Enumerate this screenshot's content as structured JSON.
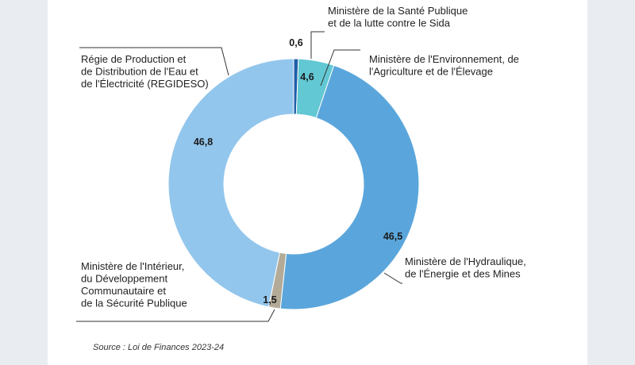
{
  "chart_data": {
    "type": "pie",
    "donut": true,
    "source": "Source : Loi de Finances  2023-24",
    "slices": [
      {
        "label_lines": [
          "Ministère de la Santé Publique",
          "et de la lutte contre le Sida"
        ],
        "value": 0.6,
        "value_label": "0,6",
        "color": "#1f5fa8"
      },
      {
        "label_lines": [
          "Ministère de l'Environnement, de",
          "l'Agriculture et de l'Élevage"
        ],
        "value": 4.6,
        "value_label": "4,6",
        "color": "#62c8d3"
      },
      {
        "label_lines": [
          "Ministère de l'Hydraulique,",
          "de l'Énergie et des Mines"
        ],
        "value": 46.5,
        "value_label": "46,5",
        "color": "#5aa6dc"
      },
      {
        "label_lines": [
          "Ministère de l'Intérieur,",
          "du Développement",
          "Communautaire et",
          "de la Sécurité Publique"
        ],
        "value": 1.5,
        "value_label": "1,5",
        "color": "#b3ab98"
      },
      {
        "label_lines": [
          "Régie de Production et",
          "de Distribution de l'Eau et",
          "de l'Électricité (REGIDESO)"
        ],
        "value": 46.8,
        "value_label": "46,8",
        "color": "#93c6ec"
      }
    ]
  }
}
